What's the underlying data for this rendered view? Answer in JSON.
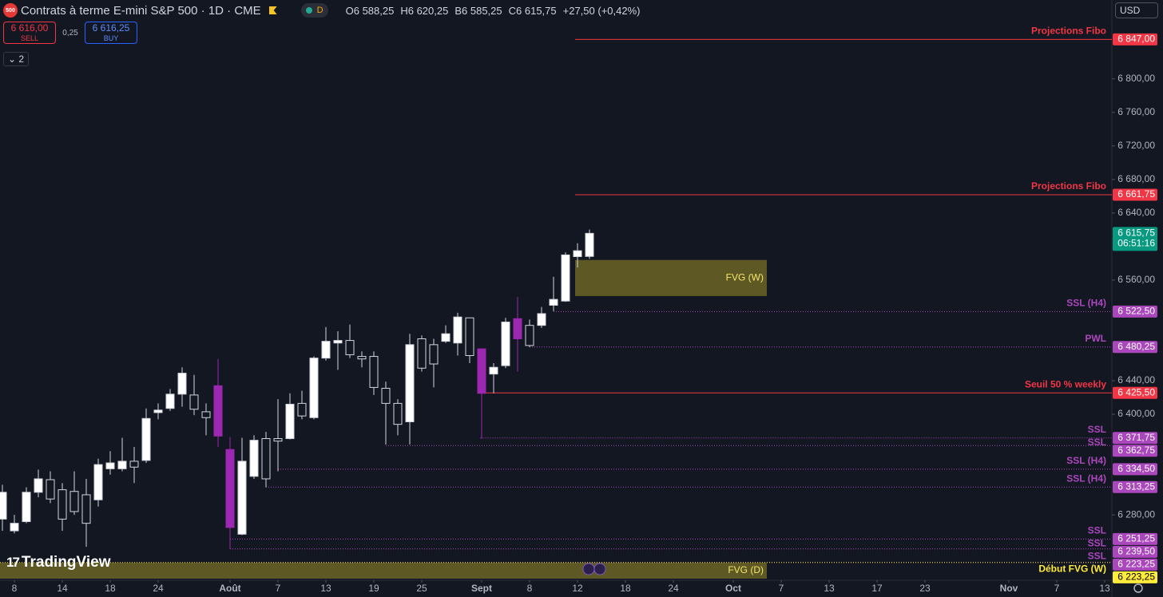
{
  "header": {
    "logo": "500",
    "title": "Contrats à terme E-mini S&P 500 · 1D · CME",
    "interval_badge": "D",
    "ohlc": [
      {
        "key": "O",
        "value": "6 588,25"
      },
      {
        "key": "H",
        "value": "6 620,25"
      },
      {
        "key": "B",
        "value": "6 585,25"
      },
      {
        "key": "C",
        "value": "6 615,75"
      }
    ],
    "change": "+27,50 (+0,42%)"
  },
  "trade": {
    "sell_price": "6 616,00",
    "sell": "SELL",
    "spread": "0,25",
    "buy_price": "6 616,25",
    "buy": "BUY"
  },
  "indicators_count": "2",
  "currency": "USD",
  "brand": "TradingView",
  "chart_data": {
    "type": "candlestick",
    "x": [
      0,
      1,
      2,
      3,
      4,
      5,
      6,
      7,
      8,
      9,
      10,
      11,
      12,
      13,
      14,
      15,
      16,
      17,
      18,
      19,
      20,
      21,
      22,
      23,
      24,
      25,
      26,
      27,
      28,
      29,
      30,
      31,
      32,
      33,
      34,
      35,
      36,
      37,
      38,
      39,
      40,
      41,
      42,
      43,
      44,
      45,
      46,
      47,
      48,
      49
    ],
    "open": [
      6275,
      6261,
      6272,
      6307,
      6322,
      6310,
      6308,
      6304,
      6298,
      6335,
      6335,
      6344,
      6345,
      6402,
      6407,
      6424,
      6423,
      6403,
      6434,
      6358,
      6257,
      6326,
      6371,
      6371,
      6371,
      6413,
      6396,
      6467,
      6485,
      6488,
      6469,
      6469,
      6431,
      6413,
      6391,
      6490,
      6483,
      6487,
      6485,
      6515,
      6478,
      6448,
      6458,
      6514,
      6506,
      6506,
      6530,
      6535,
      6588,
      6588.25
    ],
    "high": [
      6316,
      6280,
      6313,
      6334,
      6332,
      6318,
      6332,
      6323,
      6347,
      6356,
      6372,
      6361,
      6407,
      6413,
      6430,
      6456,
      6447,
      6413,
      6466,
      6373,
      6372,
      6375,
      6379,
      6418,
      6425,
      6428,
      6469,
      6504,
      6499,
      6507,
      6475,
      6475,
      6439,
      6418,
      6496,
      6494,
      6490,
      6506,
      6521,
      6515,
      6478,
      6461,
      6515,
      6540,
      6513,
      6528,
      6564,
      6593,
      6604,
      6620.25
    ],
    "low": [
      6261,
      6258,
      6270,
      6301,
      6294,
      6261,
      6280,
      6242,
      6290,
      6328,
      6332,
      6318,
      6342,
      6394,
      6404,
      6409,
      6399,
      6375,
      6361,
      6239,
      6256,
      6323,
      6313,
      6332,
      6370,
      6394,
      6394,
      6464,
      6453,
      6467,
      6456,
      6423,
      6364,
      6375,
      6364,
      6451,
      6432,
      6485,
      6470,
      6461,
      6371,
      6425,
      6455,
      6451,
      6480,
      6503,
      6523,
      6534,
      6575,
      6585.25
    ],
    "close": [
      6307,
      6270,
      6307,
      6323,
      6299,
      6275,
      6284,
      6270,
      6340,
      6342,
      6344,
      6337,
      6395,
      6405,
      6424,
      6449,
      6406,
      6396,
      6374,
      6265,
      6344,
      6369,
      6323,
      6368,
      6412,
      6398,
      6467,
      6487,
      6488,
      6471,
      6466,
      6432,
      6413,
      6388,
      6483,
      6455,
      6460,
      6496,
      6516,
      6470,
      6425,
      6456,
      6510,
      6490,
      6482,
      6520,
      6537,
      6590,
      6595,
      6615.75
    ],
    "up_color": "#ffffff",
    "down_color": "#131722",
    "wick_color": "#d1d4dc",
    "highlight": {
      "indices": [
        18,
        19,
        40,
        43
      ],
      "color": "#9c27b0"
    },
    "xlim": [
      -0.2,
      92.6
    ],
    "ylim": [
      6204,
      6894
    ],
    "xticks": [
      {
        "value": 1,
        "label": "8"
      },
      {
        "value": 5,
        "label": "14"
      },
      {
        "value": 9,
        "label": "18"
      },
      {
        "value": 13,
        "label": "24"
      },
      {
        "value": 19,
        "label": "Août"
      },
      {
        "value": 23,
        "label": "7"
      },
      {
        "value": 27,
        "label": "13"
      },
      {
        "value": 31,
        "label": "19"
      },
      {
        "value": 35,
        "label": "25"
      },
      {
        "value": 40,
        "label": "Sept"
      },
      {
        "value": 44,
        "label": "8"
      },
      {
        "value": 48,
        "label": "12"
      },
      {
        "value": 52,
        "label": "18"
      },
      {
        "value": 56,
        "label": "24"
      },
      {
        "value": 61,
        "label": "Oct"
      },
      {
        "value": 65,
        "label": "7"
      },
      {
        "value": 69,
        "label": "13"
      },
      {
        "value": 73,
        "label": "17"
      },
      {
        "value": 77,
        "label": "23"
      },
      {
        "value": 84,
        "label": "Nov"
      },
      {
        "value": 88,
        "label": "7"
      },
      {
        "value": 92,
        "label": "13"
      }
    ],
    "yticks": [
      {
        "value": 6280,
        "label": "6 280,00"
      },
      {
        "value": 6400,
        "label": "6 400,00"
      },
      {
        "value": 6440,
        "label": "6 440,00"
      },
      {
        "value": 6560,
        "label": "6 560,00"
      },
      {
        "value": 6640,
        "label": "6 640,00"
      },
      {
        "value": 6680,
        "label": "6 680,00"
      },
      {
        "value": 6720,
        "label": "6 720,00"
      },
      {
        "value": 6760,
        "label": "6 760,00"
      },
      {
        "value": 6800,
        "label": "6 800,00"
      }
    ],
    "zones": [
      {
        "label": "FVG (W)",
        "top": 6584,
        "bottom": 6541,
        "start": 47.8,
        "end": 63.8,
        "color": "#6b6424"
      },
      {
        "label": "FVG (D)",
        "top": 6223,
        "bottom": 6204,
        "start": -0.2,
        "end": 63.8,
        "color": "#6b6424"
      }
    ],
    "levels": [
      {
        "label": "Projections Fibo",
        "value": 6847,
        "value_label": "6 847,00",
        "color": "#f23645",
        "start": 47.8,
        "style": "solid"
      },
      {
        "label": "Projections Fibo",
        "value": 6661.75,
        "value_label": "6 661,75",
        "color": "#f23645",
        "start": 47.8,
        "style": "solid"
      },
      {
        "label": "SSL (H4)",
        "value": 6522.5,
        "value_label": "6 522,50",
        "color": "#ab47bc",
        "start": 46,
        "style": "dotted"
      },
      {
        "label": "PWL",
        "value": 6480.25,
        "value_label": "6 480,25",
        "color": "#ab47bc",
        "start": 44,
        "style": "dotted"
      },
      {
        "label": "Seuil 50 % weekly",
        "value": 6425.5,
        "value_label": "6 425,50",
        "color": "#f23645",
        "start": 40.3,
        "style": "solid"
      },
      {
        "label": "SSL",
        "value": 6371.75,
        "value_label": "6 371,75",
        "color": "#ab47bc",
        "start": 39.9,
        "style": "dotted"
      },
      {
        "label": "SSL",
        "value": 6362.75,
        "value_label": "6 362,75",
        "color": "#ab47bc",
        "start": 32,
        "style": "dotted"
      },
      {
        "label": "SSL (H4)",
        "value": 6334.5,
        "value_label": "6 334,50",
        "color": "#ab47bc",
        "start": 23,
        "style": "dotted"
      },
      {
        "label": "SSL (H4)",
        "value": 6313.25,
        "value_label": "6 313,25",
        "color": "#ab47bc",
        "start": 22,
        "style": "dotted"
      },
      {
        "label": "SSL",
        "value": 6251.25,
        "value_label": "6 251,25",
        "color": "#ab47bc",
        "start": 19,
        "style": "dotted"
      },
      {
        "label": "SSL",
        "value": 6239.5,
        "value_label": "6 239,50",
        "color": "#ab47bc",
        "start": 19,
        "style": "dotted"
      },
      {
        "label": "SSL",
        "value": 6223.25,
        "value_label": "6 223,25",
        "color": "#ab47bc",
        "start": 19,
        "style": "dotted"
      },
      {
        "label": "Début FVG (W)",
        "value": 6223.25,
        "value_label": "6 223,25",
        "color": "#ffeb3b",
        "start": -0.2,
        "style": "dotted"
      }
    ],
    "last_price": {
      "label": "6 615,75",
      "countdown": "06:51:16",
      "color": "#089981"
    }
  }
}
